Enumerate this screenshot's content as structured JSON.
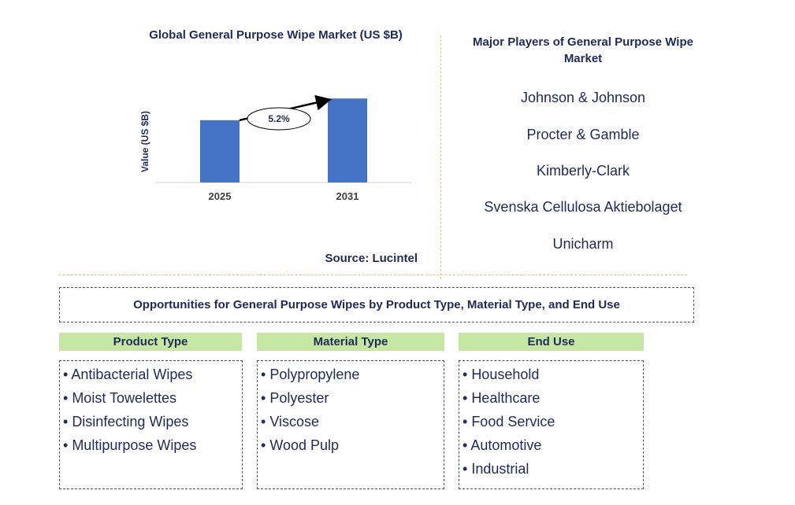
{
  "chart_data": {
    "type": "bar",
    "title": "Global General Purpose Wipe Market (US $B)",
    "ylabel": "Value (US $B)",
    "xlabel": "",
    "categories": [
      "2025",
      "2031"
    ],
    "values": [
      3.3,
      4.45
    ],
    "ylim": [
      0,
      5
    ],
    "grid": false,
    "annotation": "5.2%",
    "colors": {
      "bar": "#4472c4",
      "axis": "#d0d0d0",
      "arrow": "#000000"
    }
  },
  "source": "Source: Lucintel",
  "players": {
    "title": "Major Players of General Purpose Wipe Market",
    "items": [
      "Johnson & Johnson",
      "Procter & Gamble",
      "Kimberly-Clark",
      "Svenska Cellulosa Aktiebolaget",
      "Unicharm"
    ]
  },
  "opportunities": {
    "title": "Opportunities for General Purpose Wipes by Product Type, Material Type, and End Use",
    "columns": [
      {
        "header": "Product Type",
        "items": [
          "Antibacterial Wipes",
          "Moist Towelettes",
          "Disinfecting Wipes",
          "Multipurpose Wipes"
        ]
      },
      {
        "header": "Material Type",
        "items": [
          "Polypropylene",
          "Polyester",
          "Viscose",
          "Wood Pulp"
        ]
      },
      {
        "header": "End Use",
        "items": [
          "Household",
          "Healthcare",
          "Food Service",
          "Automotive",
          "Industrial"
        ]
      }
    ]
  }
}
